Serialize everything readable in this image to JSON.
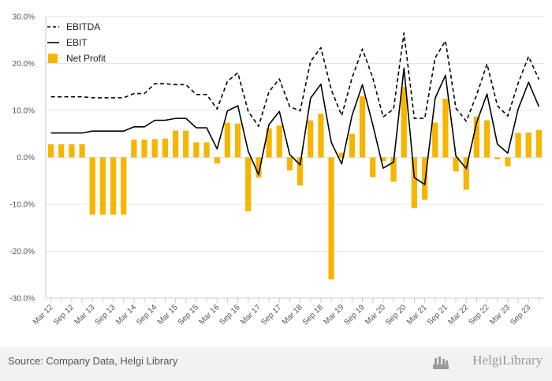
{
  "chart_data": {
    "type": "bar",
    "categories": [
      "Mar 12",
      "Jun 12",
      "Sep 12",
      "Dec 12",
      "Mar 13",
      "Jun 13",
      "Sep 13",
      "Dec 13",
      "Mar 14",
      "Jun 14",
      "Sep 14",
      "Dec 14",
      "Mar 15",
      "Jun 15",
      "Sep 15",
      "Dec 15",
      "Mar 16",
      "Jun 16",
      "Sep 16",
      "Dec 16",
      "Mar 17",
      "Jun 17",
      "Sep 17",
      "Dec 17",
      "Mar 18",
      "Jun 18",
      "Sep 18",
      "Dec 18",
      "Mar 19",
      "Jun 19",
      "Sep 19",
      "Dec 19",
      "Mar 20",
      "Jun 20",
      "Sep 20",
      "Dec 20",
      "Mar 21",
      "Jun 21",
      "Sep 21",
      "Dec 21",
      "Mar 22",
      "Jun 22",
      "Sep 22",
      "Dec 22",
      "Mar 23",
      "Jun 23",
      "Sep 23",
      "Dec 23"
    ],
    "tick_labels": [
      "Mar 12",
      "Sep 12",
      "Mar 13",
      "Sep 13",
      "Mar 14",
      "Sep 14",
      "Mar 15",
      "Sep 15",
      "Mar 16",
      "Sep 16",
      "Mar 17",
      "Sep 17",
      "Mar 18",
      "Sep 18",
      "Mar 19",
      "Sep 19",
      "Mar 20",
      "Sep 20",
      "Mar 21",
      "Sep 21",
      "Mar 22",
      "Sep 22",
      "Mar 23",
      "Sep 23"
    ],
    "series": [
      {
        "name": "Net Profit",
        "type": "bar",
        "color": "#f7b500",
        "values": [
          2.8,
          2.8,
          2.8,
          2.8,
          -12.2,
          -12.2,
          -12.2,
          -12.2,
          3.8,
          3.8,
          3.9,
          4.0,
          5.7,
          5.7,
          3.2,
          3.2,
          -1.3,
          7.4,
          7.2,
          -11.5,
          -4.3,
          6.2,
          6.8,
          -2.8,
          -6.0,
          7.9,
          9.3,
          -26.0,
          1.0,
          5.0,
          13.0,
          -4.2,
          -0.8,
          -5.2,
          15.0,
          -10.8,
          -9.0,
          7.4,
          12.5,
          -3.0,
          -6.9,
          8.7,
          7.9,
          -0.4,
          -1.9,
          5.2,
          5.3,
          5.8
        ]
      },
      {
        "name": "EBITDA",
        "type": "line",
        "dash": true,
        "color": "#000000",
        "values": [
          12.9,
          12.9,
          12.9,
          12.9,
          12.7,
          12.7,
          12.7,
          12.7,
          13.6,
          13.6,
          15.7,
          15.7,
          15.5,
          15.5,
          13.4,
          13.4,
          10.3,
          16.2,
          18.0,
          9.8,
          6.6,
          14.0,
          16.7,
          10.8,
          9.9,
          20.4,
          23.4,
          14.4,
          8.9,
          16.9,
          23.1,
          16.9,
          8.6,
          10.3,
          26.5,
          8.3,
          8.3,
          21.2,
          24.8,
          10.5,
          7.7,
          13.3,
          19.9,
          11.0,
          8.8,
          15.8,
          21.5,
          16.6
        ]
      },
      {
        "name": "EBIT",
        "type": "line",
        "dash": false,
        "color": "#000000",
        "values": [
          5.2,
          5.2,
          5.2,
          5.2,
          5.6,
          5.6,
          5.6,
          5.6,
          6.5,
          6.5,
          7.9,
          7.9,
          8.3,
          8.3,
          6.3,
          6.3,
          1.8,
          9.9,
          11.0,
          1.3,
          -3.7,
          7.0,
          9.8,
          0.6,
          -1.6,
          12.6,
          15.6,
          3.2,
          -1.4,
          8.9,
          15.5,
          6.9,
          -2.3,
          -1.0,
          19.0,
          -4.3,
          -5.8,
          12.6,
          17.5,
          0.3,
          -2.4,
          7.4,
          13.5,
          2.8,
          0.9,
          10.3,
          16.0,
          10.8
        ]
      }
    ],
    "ylim": [
      -30,
      30
    ],
    "yticks": [
      -30,
      -20,
      -10,
      0,
      10,
      20,
      30
    ],
    "ytick_labels": [
      "-30.0%",
      "-20.0%",
      "-10.0%",
      "0.0%",
      "10.0%",
      "20.0%",
      "30.0%"
    ],
    "grid": "horizontal",
    "legend_position": "top-left"
  },
  "legend": {
    "ebitda": "EBITDA",
    "ebit": "EBIT",
    "net_profit": "Net Profit"
  },
  "footer": {
    "source": "Source: Company Data, Helgi Library",
    "brand": "HelgiLibrary"
  }
}
